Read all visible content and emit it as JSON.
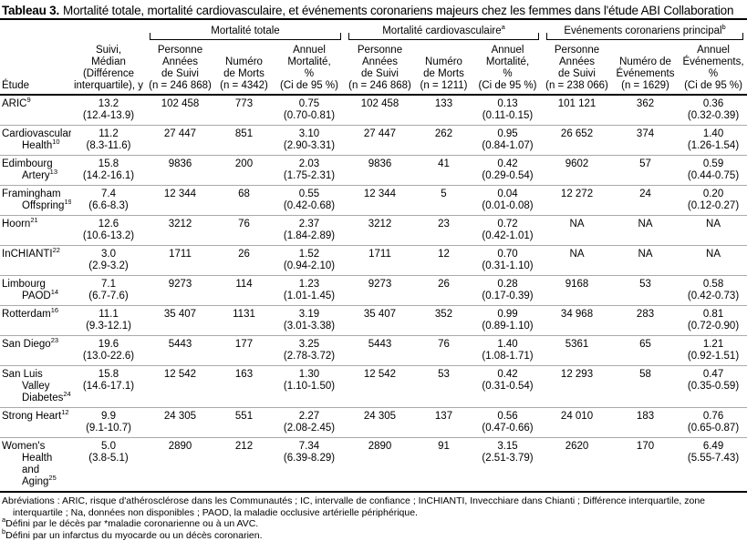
{
  "title": {
    "label": "Tableau 3.",
    "text": "Mortalité totale, mortalité cardiovasculaire, et événements coronariens majeurs chez les femmes dans l'étude ABI Collaboration"
  },
  "table": {
    "groups": [
      {
        "label": "Mortalité totale"
      },
      {
        "label": "Mortalité cardiovasculaire",
        "note": "a"
      },
      {
        "label": "Evénements coronariens principal",
        "note": "b"
      }
    ],
    "columns": [
      [
        "Étude"
      ],
      [
        "Suivi,",
        "Médian",
        "(Différence",
        "interquartile), y"
      ],
      [
        "Personne",
        "Années",
        "de Suivi",
        "(n = 246 868)"
      ],
      [
        "Numéro",
        "de Morts",
        "(n = 4342)"
      ],
      [
        "Annuel",
        "Mortalité,",
        "%",
        "(Ci de 95 %)"
      ],
      [
        "Personne",
        "Années",
        "de Suivi",
        "(n = 246 868)"
      ],
      [
        "Numéro",
        "de Morts",
        "(n = 1211)"
      ],
      [
        "Annuel",
        "Mortalité,",
        "%",
        "(Ci de 95 %)"
      ],
      [
        "Personne",
        "Années",
        "de Suivi",
        "(n = 238 066)"
      ],
      [
        "Numéro de",
        "Événements",
        "(n = 1629)"
      ],
      [
        "Annuel",
        "Événements,",
        "%",
        "(Ci de 95 %)"
      ]
    ],
    "rows": [
      {
        "study": "ARIC",
        "ref": "9",
        "cells": [
          [
            "13.2",
            "(12.4-13.9)"
          ],
          [
            "102 458"
          ],
          [
            "773"
          ],
          [
            "0.75",
            "(0.70-0.81)"
          ],
          [
            "102 458"
          ],
          [
            "133"
          ],
          [
            "0.13",
            "(0.11-0.15)"
          ],
          [
            "101 121"
          ],
          [
            "362"
          ],
          [
            "0.36",
            "(0.32-0.39)"
          ]
        ]
      },
      {
        "study": "Cardiovascular Health",
        "ref": "10",
        "cells": [
          [
            "11.2",
            "(8.3-11.6)"
          ],
          [
            "27 447"
          ],
          [
            "851"
          ],
          [
            "3.10",
            "(2.90-3.31)"
          ],
          [
            "27 447"
          ],
          [
            "262"
          ],
          [
            "0.95",
            "(0.84-1.07)"
          ],
          [
            "26 652"
          ],
          [
            "374"
          ],
          [
            "1.40",
            "(1.26-1.54)"
          ]
        ]
      },
      {
        "study": "Edimbourg Artery",
        "ref": "13",
        "cells": [
          [
            "15.8",
            "(14.2-16.1)"
          ],
          [
            "9836"
          ],
          [
            "200"
          ],
          [
            "2.03",
            "(1.75-2.31)"
          ],
          [
            "9836"
          ],
          [
            "41"
          ],
          [
            "0.42",
            "(0.29-0.54)"
          ],
          [
            "9602"
          ],
          [
            "57"
          ],
          [
            "0.59",
            "(0.44-0.75)"
          ]
        ]
      },
      {
        "study": "Framingham Offspring",
        "ref": "19",
        "cells": [
          [
            "7.4",
            "(6.6-8.3)"
          ],
          [
            "12 344"
          ],
          [
            "68"
          ],
          [
            "0.55",
            "(0.42-0.68)"
          ],
          [
            "12 344"
          ],
          [
            "5"
          ],
          [
            "0.04",
            "(0.01-0.08)"
          ],
          [
            "12 272"
          ],
          [
            "24"
          ],
          [
            "0.20",
            "(0.12-0.27)"
          ]
        ]
      },
      {
        "study": "Hoorn",
        "ref": "21",
        "cells": [
          [
            "12.6",
            "(10.6-13.2)"
          ],
          [
            "3212"
          ],
          [
            "76"
          ],
          [
            "2.37",
            "(1.84-2.89)"
          ],
          [
            "3212"
          ],
          [
            "23"
          ],
          [
            "0.72",
            "(0.42-1.01)"
          ],
          [
            "NA"
          ],
          [
            "NA"
          ],
          [
            "NA"
          ]
        ]
      },
      {
        "study": "InCHIANTI",
        "ref": "22",
        "cells": [
          [
            "3.0",
            "(2.9-3.2)"
          ],
          [
            "1711"
          ],
          [
            "26"
          ],
          [
            "1.52",
            "(0.94-2.10)"
          ],
          [
            "1711"
          ],
          [
            "12"
          ],
          [
            "0.70",
            "(0.31-1.10)"
          ],
          [
            "NA"
          ],
          [
            "NA"
          ],
          [
            "NA"
          ]
        ]
      },
      {
        "study": "Limbourg PAOD",
        "ref": "14",
        "cells": [
          [
            "7.1",
            "(6.7-7.6)"
          ],
          [
            "9273"
          ],
          [
            "114"
          ],
          [
            "1.23",
            "(1.01-1.45)"
          ],
          [
            "9273"
          ],
          [
            "26"
          ],
          [
            "0.28",
            "(0.17-0.39)"
          ],
          [
            "9168"
          ],
          [
            "53"
          ],
          [
            "0.58",
            "(0.42-0.73)"
          ]
        ]
      },
      {
        "study": "Rotterdam",
        "ref": "16",
        "cells": [
          [
            "11.1",
            "(9.3-12.1)"
          ],
          [
            "35 407"
          ],
          [
            "1131"
          ],
          [
            "3.19",
            "(3.01-3.38)"
          ],
          [
            "35 407"
          ],
          [
            "352"
          ],
          [
            "0.99",
            "(0.89-1.10)"
          ],
          [
            "34 968"
          ],
          [
            "283"
          ],
          [
            "0.81",
            "(0.72-0.90)"
          ]
        ]
      },
      {
        "study": "San Diego",
        "ref": "23",
        "cells": [
          [
            "19.6",
            "(13.0-22.6)"
          ],
          [
            "5443"
          ],
          [
            "177"
          ],
          [
            "3.25",
            "(2.78-3.72)"
          ],
          [
            "5443"
          ],
          [
            "76"
          ],
          [
            "1.40",
            "(1.08-1.71)"
          ],
          [
            "5361"
          ],
          [
            "65"
          ],
          [
            "1.21",
            "(0.92-1.51)"
          ]
        ]
      },
      {
        "study": "San Luis Valley Diabetes",
        "ref": "24",
        "cells": [
          [
            "15.8",
            "(14.6-17.1)"
          ],
          [
            "12 542"
          ],
          [
            "163"
          ],
          [
            "1.30",
            "(1.10-1.50)"
          ],
          [
            "12 542"
          ],
          [
            "53"
          ],
          [
            "0.42",
            "(0.31-0.54)"
          ],
          [
            "12 293"
          ],
          [
            "58"
          ],
          [
            "0.47",
            "(0.35-0.59)"
          ]
        ]
      },
      {
        "study": "Strong Heart",
        "ref": "12",
        "cells": [
          [
            "9.9",
            "(9.1-10.7)"
          ],
          [
            "24 305"
          ],
          [
            "551"
          ],
          [
            "2.27",
            "(2.08-2.45)"
          ],
          [
            "24 305"
          ],
          [
            "137"
          ],
          [
            "0.56",
            "(0.47-0.66)"
          ],
          [
            "24 010"
          ],
          [
            "183"
          ],
          [
            "0.76",
            "(0.65-0.87)"
          ]
        ]
      },
      {
        "study": "Women's Health and Aging",
        "ref": "25",
        "cells": [
          [
            "5.0",
            "(3.8-5.1)"
          ],
          [
            "2890"
          ],
          [
            "212"
          ],
          [
            "7.34",
            "(6.39-8.29)"
          ],
          [
            "2890"
          ],
          [
            "91"
          ],
          [
            "3.15",
            "(2.51-3.79)"
          ],
          [
            "2620"
          ],
          [
            "170"
          ],
          [
            "6.49",
            "(5.55-7.43)"
          ]
        ]
      }
    ]
  },
  "footer": {
    "abbreviations": "Abréviations : ARIC, risque d'athérosclérose dans les Communautés ; IC, intervalle de confiance ; InCHIANTI, Invecchiare dans Chianti ; Différence interquartile, zone interquartile ; Na, données non disponibles ; PAOD, la maladie occlusive artérielle périphérique.",
    "notes": [
      {
        "mark": "a",
        "text": "Défini par le décès par *maladie coronarienne ou à un AVC."
      },
      {
        "mark": "b",
        "text": "Défini par un infarctus du myocarde ou un décès coronarien."
      }
    ]
  }
}
